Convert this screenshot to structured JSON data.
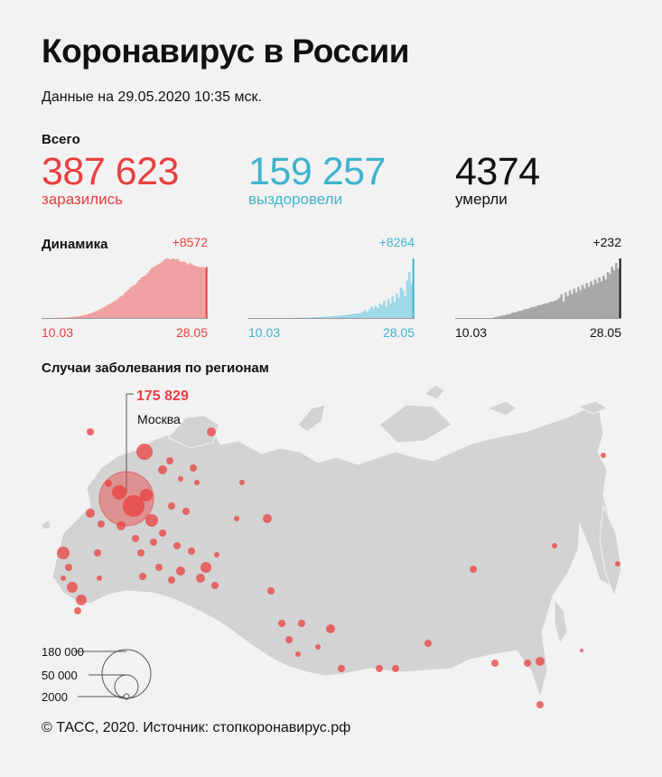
{
  "title": "Коронавирус в России",
  "subtitle": "Данные на 29.05.2020 10:35 мск.",
  "totals_label": "Всего",
  "totals": {
    "infected": {
      "value": "387 623",
      "label": "заразились",
      "color": "#e8403f"
    },
    "recovered": {
      "value": "159 257",
      "label": "выздоровели",
      "color": "#3fb3cf"
    },
    "died": {
      "value": "4374",
      "label": "умерли",
      "color": "#111111"
    }
  },
  "dynamics_label": "Динамика",
  "dynamics": {
    "infected": {
      "delta": "+8572",
      "start": "10.03",
      "end": "28.05",
      "color": "#e8403f",
      "fill": "#f0a1a1"
    },
    "recovered": {
      "delta": "+8264",
      "start": "10.03",
      "end": "28.05",
      "color": "#3fb3cf",
      "fill": "#9fd8e6"
    },
    "died": {
      "delta": "+232",
      "start": "10.03",
      "end": "28.05",
      "color": "#111111",
      "fill": "#a8a8a8"
    }
  },
  "map": {
    "title": "Случаи заболевания по регионам",
    "moscow_value": "175 829",
    "moscow_name": "Москва",
    "legend": [
      "180 000",
      "50 000",
      "2000"
    ],
    "land_color": "#d3d3d3",
    "dot_color": "#e8403f"
  },
  "source": "© ТАСС, 2020. Источник: стопкоронавирус.рф",
  "chart_data": [
    {
      "type": "bar",
      "title": "Динамика",
      "series": [
        {
          "name": "заразились",
          "values": [
            1,
            1,
            1,
            1,
            2,
            2,
            3,
            4,
            5,
            6,
            8,
            10,
            12,
            14,
            18,
            22,
            26,
            30,
            36,
            42,
            50,
            60,
            70,
            80,
            95,
            110,
            125,
            140,
            160,
            180,
            200,
            220,
            240,
            260,
            280,
            300,
            330,
            360,
            380,
            420,
            450,
            480,
            520,
            540,
            560,
            600,
            640,
            680,
            700,
            720,
            760,
            800,
            840,
            860,
            880,
            900,
            920,
            950,
            980,
            1000,
            990,
            980,
            1000,
            980,
            990,
            960,
            940,
            950,
            930,
            900,
            920,
            900,
            880,
            870,
            860,
            850,
            860,
            840,
            857
          ]
        }
      ],
      "xlabel": "",
      "ylabel": "",
      "x_start": "10.03",
      "x_end": "28.05",
      "last_delta": "+8572"
    },
    {
      "type": "bar",
      "title": "",
      "series": [
        {
          "name": "выздоровели",
          "values": [
            0,
            0,
            0,
            0,
            0,
            0,
            0,
            0,
            0,
            0,
            0,
            0,
            0,
            1,
            1,
            1,
            1,
            2,
            2,
            2,
            3,
            3,
            4,
            4,
            5,
            5,
            6,
            7,
            8,
            9,
            10,
            11,
            12,
            13,
            14,
            16,
            18,
            20,
            22,
            24,
            26,
            28,
            30,
            34,
            38,
            40,
            42,
            46,
            50,
            54,
            58,
            62,
            64,
            70,
            90,
            110,
            80,
            120,
            160,
            130,
            170,
            140,
            200,
            180,
            240,
            150,
            260,
            200,
            300,
            220,
            340,
            280,
            420,
            380,
            300,
            520,
            640,
            480,
            826
          ]
        }
      ],
      "xlabel": "",
      "ylabel": "",
      "x_start": "10.03",
      "x_end": "28.05",
      "last_delta": "+8264"
    },
    {
      "type": "bar",
      "title": "",
      "series": [
        {
          "name": "умерли",
          "values": [
            0,
            0,
            0,
            0,
            0,
            0,
            0,
            0,
            0,
            0,
            0,
            0,
            0,
            0,
            0,
            0,
            0,
            0,
            1,
            1,
            2,
            2,
            3,
            3,
            4,
            4,
            5,
            6,
            6,
            7,
            8,
            8,
            9,
            10,
            10,
            11,
            12,
            12,
            13,
            14,
            14,
            15,
            16,
            16,
            17,
            18,
            18,
            19,
            20,
            22,
            26,
            18,
            28,
            24,
            30,
            26,
            32,
            28,
            34,
            30,
            36,
            32,
            38,
            34,
            40,
            36,
            42,
            38,
            44,
            40,
            46,
            42,
            50,
            48,
            56,
            52,
            60,
            54,
            65
          ]
        }
      ],
      "xlabel": "",
      "ylabel": "",
      "x_start": "10.03",
      "x_end": "28.05",
      "last_delta": "+232"
    }
  ]
}
